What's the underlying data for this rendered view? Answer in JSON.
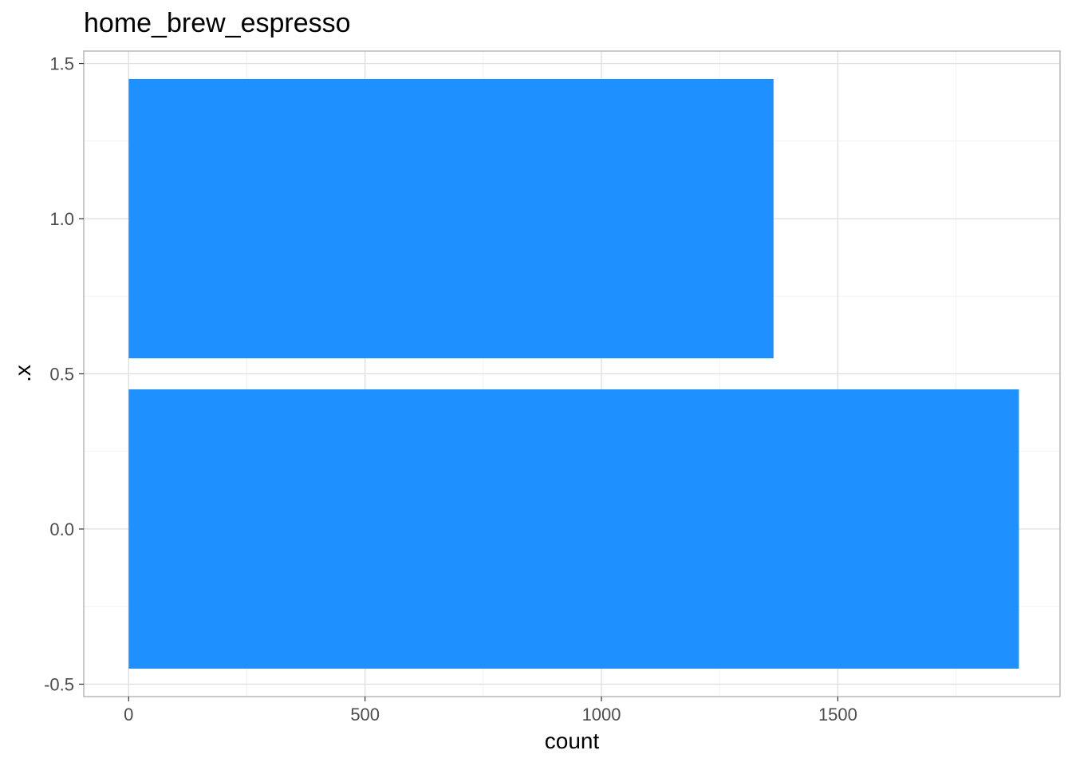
{
  "chart_data": {
    "type": "bar",
    "orientation": "horizontal",
    "title": "home_brew_espresso",
    "xlabel": "count",
    "ylabel": ".x",
    "color": "#1e90ff",
    "xlim": [
      -95,
      1970
    ],
    "ylim": [
      -0.54,
      1.54
    ],
    "xticks": [
      0,
      500,
      1000,
      1500
    ],
    "xtick_labels": [
      "0",
      "500",
      "1000",
      "1500"
    ],
    "yticks": [
      -0.5,
      0.0,
      0.5,
      1.0,
      1.5
    ],
    "ytick_labels": [
      "-0.5",
      "0.0",
      "0.5",
      "1.0",
      "1.5"
    ],
    "x_minor": [
      250,
      750,
      1250,
      1750
    ],
    "y_minor": [
      -0.25,
      0.25,
      0.75,
      1.25
    ],
    "grid": true,
    "bar_width": 0.9,
    "bars": [
      {
        "y": 0,
        "value": 1883
      },
      {
        "y": 1,
        "value": 1364
      }
    ]
  }
}
